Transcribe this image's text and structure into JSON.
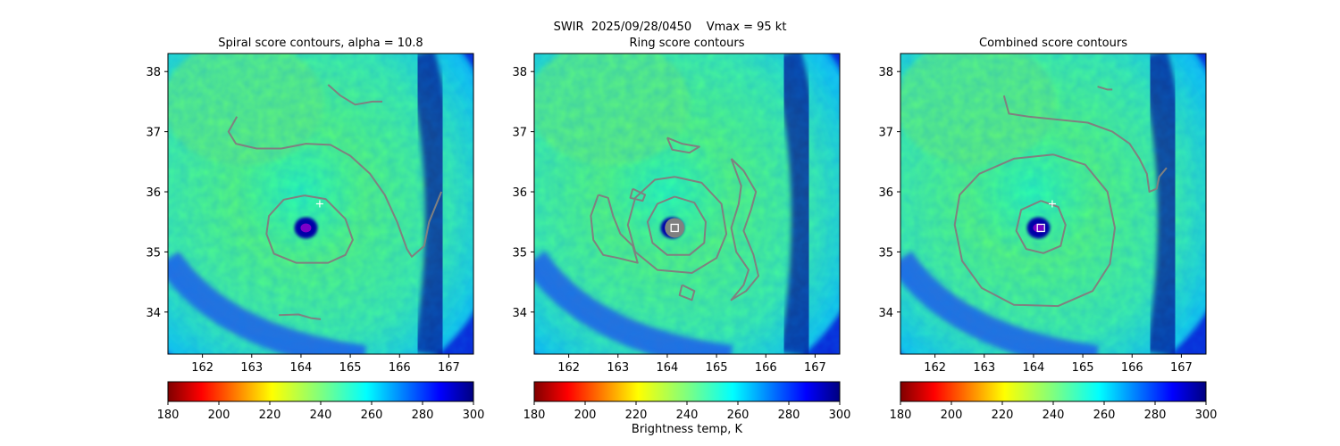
{
  "figure": {
    "suptitle_line1": "SWIR  2025/09/28/0450    Vmax = 95 kt",
    "colorbar_label": "Brightness temp, K",
    "colormap": "jet_r",
    "colors": {
      "contour": "#808080",
      "center_cross": "#ffffff",
      "center_square_edge": "#ffffff",
      "ring_center_disk": "#808080"
    }
  },
  "chart_data": [
    {
      "type": "heatmap",
      "title": "Spiral score contours, alpha = 10.8",
      "field": "SWIR brightness temperature",
      "xlim": [
        161.3,
        167.5
      ],
      "ylim": [
        33.3,
        38.3
      ],
      "xticks": [
        162,
        163,
        164,
        165,
        166,
        167
      ],
      "yticks": [
        34,
        35,
        36,
        37,
        38
      ],
      "colorbar": {
        "vmin": 180,
        "vmax": 300,
        "ticks": [
          180,
          200,
          220,
          240,
          260,
          280,
          300
        ]
      },
      "markers": [
        {
          "kind": "cross",
          "lon": 164.38,
          "lat": 35.8
        }
      ],
      "contours": [
        [
          [
            164.07,
            35.94
          ],
          [
            164.5,
            35.88
          ],
          [
            164.9,
            35.55
          ],
          [
            165.05,
            35.2
          ],
          [
            164.9,
            34.95
          ],
          [
            164.55,
            34.82
          ],
          [
            163.9,
            34.82
          ],
          [
            163.45,
            34.97
          ],
          [
            163.3,
            35.3
          ],
          [
            163.35,
            35.6
          ],
          [
            163.65,
            35.87
          ],
          [
            164.07,
            35.94
          ]
        ],
        [
          [
            162.7,
            37.25
          ],
          [
            162.53,
            37.0
          ],
          [
            162.68,
            36.8
          ],
          [
            163.1,
            36.72
          ],
          [
            163.6,
            36.72
          ],
          [
            164.1,
            36.8
          ],
          [
            164.6,
            36.78
          ],
          [
            165.0,
            36.6
          ],
          [
            165.4,
            36.3
          ],
          [
            165.7,
            35.95
          ],
          [
            165.95,
            35.5
          ],
          [
            166.15,
            35.05
          ],
          [
            166.25,
            34.92
          ],
          [
            166.5,
            35.1
          ],
          [
            166.6,
            35.5
          ],
          [
            166.75,
            35.8
          ],
          [
            166.85,
            36.0
          ]
        ],
        [
          [
            164.55,
            37.78
          ],
          [
            164.8,
            37.6
          ],
          [
            165.1,
            37.45
          ],
          [
            165.45,
            37.5
          ],
          [
            165.65,
            37.5
          ]
        ],
        [
          [
            163.55,
            33.95
          ],
          [
            163.95,
            33.96
          ],
          [
            164.2,
            33.9
          ],
          [
            164.4,
            33.88
          ]
        ]
      ]
    },
    {
      "type": "heatmap",
      "title": "Ring score contours",
      "field": "SWIR brightness temperature",
      "xlim": [
        161.3,
        167.5
      ],
      "ylim": [
        33.3,
        38.3
      ],
      "xticks": [
        162,
        163,
        164,
        165,
        166,
        167
      ],
      "yticks": [
        34,
        35,
        36,
        37,
        38
      ],
      "colorbar": {
        "vmin": 180,
        "vmax": 300,
        "ticks": [
          180,
          200,
          220,
          240,
          260,
          280,
          300
        ]
      },
      "markers": [
        {
          "kind": "square",
          "lon": 164.15,
          "lat": 35.4
        }
      ],
      "contours": [
        [
          [
            164.15,
            35.92
          ],
          [
            164.55,
            35.82
          ],
          [
            164.78,
            35.5
          ],
          [
            164.75,
            35.15
          ],
          [
            164.45,
            34.95
          ],
          [
            164.0,
            34.95
          ],
          [
            163.7,
            35.15
          ],
          [
            163.6,
            35.5
          ],
          [
            163.8,
            35.8
          ],
          [
            164.15,
            35.92
          ]
        ],
        [
          [
            164.15,
            36.25
          ],
          [
            164.7,
            36.15
          ],
          [
            165.1,
            35.8
          ],
          [
            165.2,
            35.3
          ],
          [
            165.0,
            34.9
          ],
          [
            164.5,
            34.65
          ],
          [
            163.8,
            34.7
          ],
          [
            163.35,
            35.0
          ],
          [
            163.2,
            35.45
          ],
          [
            163.35,
            35.9
          ],
          [
            163.75,
            36.2
          ],
          [
            164.15,
            36.25
          ]
        ],
        [
          [
            162.6,
            35.95
          ],
          [
            162.45,
            35.6
          ],
          [
            162.5,
            35.2
          ],
          [
            162.7,
            34.95
          ],
          [
            163.0,
            34.9
          ],
          [
            163.4,
            34.82
          ],
          [
            163.3,
            35.1
          ],
          [
            163.05,
            35.3
          ],
          [
            162.9,
            35.6
          ],
          [
            162.8,
            35.9
          ],
          [
            162.6,
            35.95
          ]
        ],
        [
          [
            165.3,
            36.55
          ],
          [
            165.55,
            36.35
          ],
          [
            165.8,
            36.0
          ],
          [
            165.7,
            35.7
          ],
          [
            165.55,
            35.35
          ],
          [
            165.75,
            34.95
          ],
          [
            165.85,
            34.6
          ],
          [
            165.6,
            34.35
          ],
          [
            165.3,
            34.2
          ],
          [
            165.55,
            34.45
          ],
          [
            165.65,
            34.7
          ],
          [
            165.4,
            35.0
          ],
          [
            165.3,
            35.4
          ],
          [
            165.45,
            35.8
          ],
          [
            165.5,
            36.1
          ],
          [
            165.3,
            36.55
          ]
        ],
        [
          [
            164.0,
            36.9
          ],
          [
            164.3,
            36.8
          ],
          [
            164.65,
            36.75
          ],
          [
            164.45,
            36.65
          ],
          [
            164.1,
            36.7
          ],
          [
            164.0,
            36.9
          ]
        ],
        [
          [
            163.3,
            36.05
          ],
          [
            163.55,
            35.95
          ],
          [
            163.5,
            35.85
          ],
          [
            163.25,
            35.9
          ],
          [
            163.3,
            36.05
          ]
        ],
        [
          [
            164.3,
            34.45
          ],
          [
            164.55,
            34.35
          ],
          [
            164.5,
            34.2
          ],
          [
            164.25,
            34.28
          ],
          [
            164.3,
            34.45
          ]
        ]
      ]
    },
    {
      "type": "heatmap",
      "title": "Combined score contours",
      "field": "SWIR brightness temperature",
      "xlim": [
        161.3,
        167.5
      ],
      "ylim": [
        33.3,
        38.3
      ],
      "xticks": [
        162,
        163,
        164,
        165,
        166,
        167
      ],
      "yticks": [
        34,
        35,
        36,
        37,
        38
      ],
      "colorbar": {
        "vmin": 180,
        "vmax": 300,
        "ticks": [
          180,
          200,
          220,
          240,
          260,
          280,
          300
        ]
      },
      "markers": [
        {
          "kind": "cross",
          "lon": 164.38,
          "lat": 35.8
        },
        {
          "kind": "square",
          "lon": 164.15,
          "lat": 35.4
        }
      ],
      "contours": [
        [
          [
            164.15,
            35.85
          ],
          [
            164.5,
            35.75
          ],
          [
            164.65,
            35.45
          ],
          [
            164.55,
            35.1
          ],
          [
            164.2,
            34.98
          ],
          [
            163.85,
            35.05
          ],
          [
            163.65,
            35.35
          ],
          [
            163.75,
            35.7
          ],
          [
            164.15,
            35.85
          ]
        ],
        [
          [
            164.4,
            36.62
          ],
          [
            165.05,
            36.45
          ],
          [
            165.5,
            36.0
          ],
          [
            165.65,
            35.4
          ],
          [
            165.55,
            34.8
          ],
          [
            165.2,
            34.35
          ],
          [
            164.5,
            34.1
          ],
          [
            163.6,
            34.12
          ],
          [
            162.95,
            34.4
          ],
          [
            162.55,
            34.85
          ],
          [
            162.4,
            35.45
          ],
          [
            162.5,
            35.95
          ],
          [
            162.9,
            36.3
          ],
          [
            163.6,
            36.55
          ],
          [
            164.4,
            36.62
          ]
        ],
        [
          [
            163.4,
            37.6
          ],
          [
            163.5,
            37.3
          ],
          [
            163.9,
            37.25
          ],
          [
            164.5,
            37.2
          ],
          [
            165.1,
            37.15
          ],
          [
            165.6,
            37.0
          ],
          [
            165.95,
            36.8
          ],
          [
            166.15,
            36.55
          ],
          [
            166.3,
            36.3
          ],
          [
            166.35,
            36.0
          ],
          [
            166.5,
            36.05
          ],
          [
            166.55,
            36.25
          ],
          [
            166.7,
            36.4
          ]
        ],
        [
          [
            165.3,
            37.75
          ],
          [
            165.5,
            37.7
          ],
          [
            165.6,
            37.7
          ]
        ]
      ]
    }
  ]
}
